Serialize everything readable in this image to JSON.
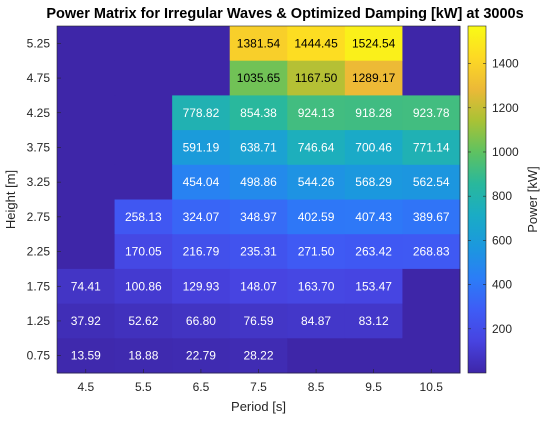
{
  "chart_data": {
    "type": "heatmap",
    "title": "Power Matrix for Irregular Waves & Optimized Damping [kW] at 3000s",
    "xlabel": "Period [s]",
    "ylabel": "Height [m]",
    "colorbar_label": "Power [kW]",
    "x": [
      "4.5",
      "5.5",
      "6.5",
      "7.5",
      "8.5",
      "9.5",
      "10.5"
    ],
    "y": [
      "5.25",
      "4.75",
      "4.25",
      "3.75",
      "3.25",
      "2.75",
      "2.25",
      "1.75",
      "1.25",
      "0.75"
    ],
    "values": [
      [
        null,
        null,
        null,
        1381.54,
        1444.45,
        1524.54,
        null
      ],
      [
        null,
        null,
        null,
        1035.65,
        1167.5,
        1289.17,
        null
      ],
      [
        null,
        null,
        778.82,
        854.38,
        924.13,
        918.28,
        923.78
      ],
      [
        null,
        null,
        591.19,
        638.71,
        746.64,
        700.46,
        771.14
      ],
      [
        null,
        null,
        454.04,
        498.86,
        544.26,
        568.29,
        562.54
      ],
      [
        null,
        258.13,
        324.07,
        348.97,
        402.59,
        407.43,
        389.67
      ],
      [
        null,
        170.05,
        216.79,
        235.31,
        271.5,
        263.42,
        268.83
      ],
      [
        74.41,
        100.86,
        129.93,
        148.07,
        163.7,
        153.47,
        null
      ],
      [
        37.92,
        52.62,
        66.8,
        76.59,
        84.87,
        83.12,
        null
      ],
      [
        13.59,
        18.88,
        22.79,
        28.22,
        null,
        null,
        null
      ]
    ],
    "value_labels": [
      [
        null,
        null,
        null,
        "1381.54",
        "1444.45",
        "1524.54",
        null
      ],
      [
        null,
        null,
        null,
        "1035.65",
        "1167.50",
        "1289.17",
        null
      ],
      [
        null,
        null,
        "778.82",
        "854.38",
        "924.13",
        "918.28",
        "923.78"
      ],
      [
        null,
        null,
        "591.19",
        "638.71",
        "746.64",
        "700.46",
        "771.14"
      ],
      [
        null,
        null,
        "454.04",
        "498.86",
        "544.26",
        "568.29",
        "562.54"
      ],
      [
        null,
        "258.13",
        "324.07",
        "348.97",
        "402.59",
        "407.43",
        "389.67"
      ],
      [
        null,
        "170.05",
        "216.79",
        "235.31",
        "271.50",
        "263.42",
        "268.83"
      ],
      [
        "74.41",
        "100.86",
        "129.93",
        "148.07",
        "163.70",
        "153.47",
        null
      ],
      [
        "37.92",
        "52.62",
        "66.80",
        "76.59",
        "84.87",
        "83.12",
        null
      ],
      [
        "13.59",
        "18.88",
        "22.79",
        "28.22",
        null,
        null,
        null
      ]
    ],
    "empty_value": 0,
    "colorbar_ticks": [
      "200",
      "400",
      "600",
      "800",
      "1000",
      "1200",
      "1400"
    ],
    "colorbar_tick_values": [
      200,
      400,
      600,
      800,
      1000,
      1200,
      1400
    ],
    "clim": [
      0,
      1570
    ],
    "colormap": "parula",
    "colormap_stops": [
      "#3e26a8",
      "#4743e0",
      "#3e5cf6",
      "#2b7df7",
      "#1b98de",
      "#1aacc5",
      "#29b89c",
      "#5ec261",
      "#a9c235",
      "#ecb937",
      "#fdd924",
      "#f9fb15"
    ],
    "grid": false,
    "legend": "colorbar-right"
  }
}
